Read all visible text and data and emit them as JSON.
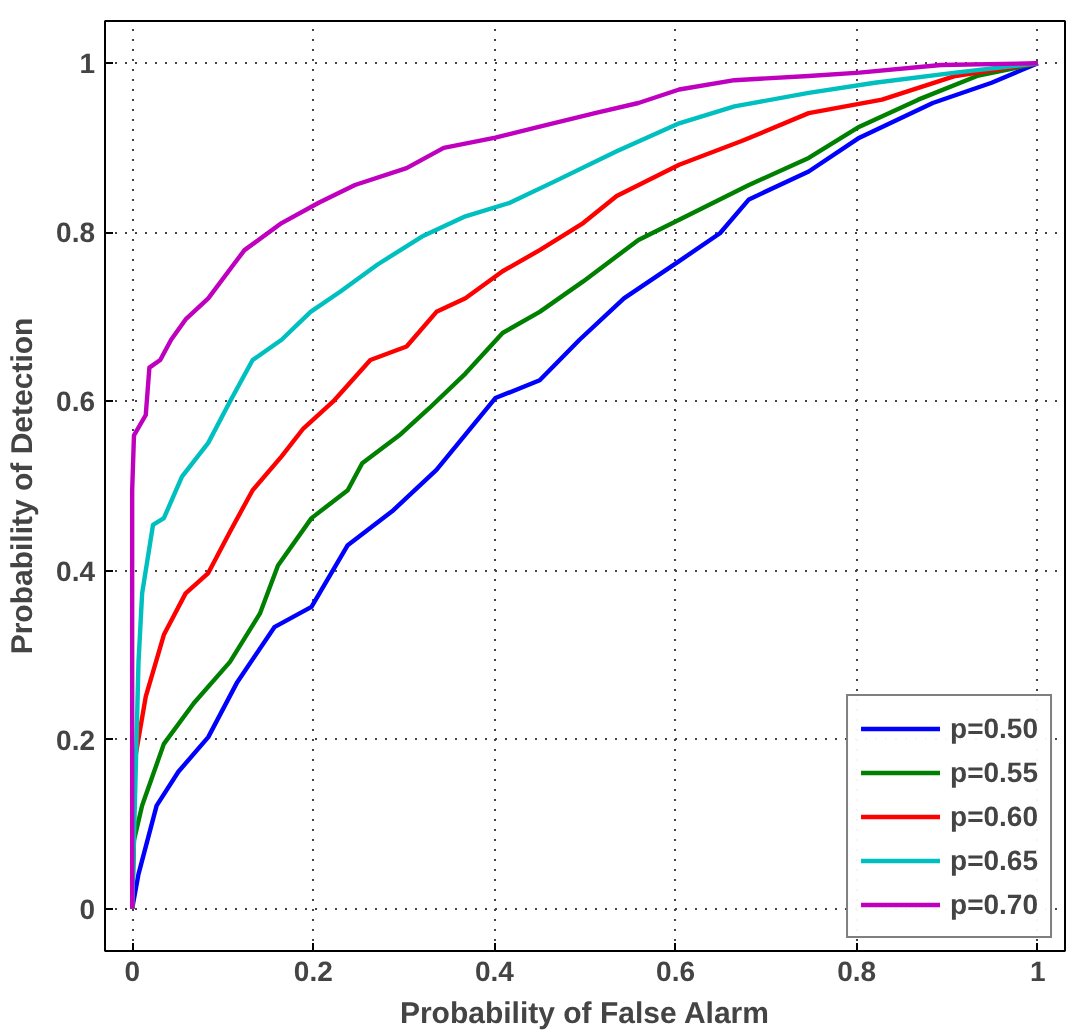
{
  "chart_data": {
    "type": "line",
    "xlabel": "Probability of False Alarm",
    "ylabel": "Probability of Detection",
    "xlim": [
      -0.03,
      1.03
    ],
    "ylim": [
      -0.05,
      1.05
    ],
    "xticks": [
      0,
      0.2,
      0.4,
      0.6,
      0.8,
      1
    ],
    "yticks": [
      0,
      0.2,
      0.4,
      0.6,
      0.8,
      1
    ],
    "grid": true,
    "legend": "bottom right",
    "line_style": "solid",
    "marker": "none",
    "series": [
      {
        "name": "p=0.50",
        "color": "#0000ff",
        "x": [
          0,
          0.007,
          0.027,
          0.051,
          0.084,
          0.116,
          0.157,
          0.198,
          0.238,
          0.287,
          0.336,
          0.401,
          0.45,
          0.494,
          0.543,
          0.604,
          0.649,
          0.681,
          0.747,
          0.803,
          0.884,
          0.949,
          1
        ],
        "values": [
          0,
          0.041,
          0.122,
          0.162,
          0.203,
          0.268,
          0.333,
          0.357,
          0.43,
          0.47,
          0.519,
          0.604,
          0.625,
          0.673,
          0.722,
          0.766,
          0.799,
          0.839,
          0.872,
          0.912,
          0.953,
          0.977,
          1
        ]
      },
      {
        "name": "p=0.55",
        "color": "#008000",
        "x": [
          0,
          0.002,
          0.011,
          0.035,
          0.068,
          0.108,
          0.141,
          0.161,
          0.198,
          0.238,
          0.254,
          0.295,
          0.328,
          0.368,
          0.409,
          0.45,
          0.498,
          0.559,
          0.604,
          0.681,
          0.747,
          0.803,
          0.868,
          0.933,
          1
        ],
        "values": [
          0,
          0.081,
          0.122,
          0.195,
          0.243,
          0.292,
          0.349,
          0.406,
          0.462,
          0.495,
          0.527,
          0.56,
          0.592,
          0.633,
          0.681,
          0.706,
          0.742,
          0.791,
          0.815,
          0.856,
          0.888,
          0.925,
          0.957,
          0.985,
          1
        ]
      },
      {
        "name": "p=0.60",
        "color": "#ff0000",
        "x": [
          0,
          0.002,
          0.015,
          0.035,
          0.059,
          0.084,
          0.108,
          0.133,
          0.165,
          0.189,
          0.222,
          0.263,
          0.303,
          0.336,
          0.368,
          0.409,
          0.45,
          0.498,
          0.535,
          0.604,
          0.673,
          0.747,
          0.828,
          0.909,
          1
        ],
        "values": [
          0,
          0.17,
          0.251,
          0.324,
          0.373,
          0.397,
          0.446,
          0.495,
          0.535,
          0.568,
          0.6,
          0.649,
          0.665,
          0.706,
          0.722,
          0.754,
          0.779,
          0.811,
          0.843,
          0.88,
          0.908,
          0.941,
          0.957,
          0.985,
          1
        ]
      },
      {
        "name": "p=0.65",
        "color": "#00bfbf",
        "x": [
          0,
          0.007,
          0.011,
          0.023,
          0.035,
          0.055,
          0.084,
          0.108,
          0.133,
          0.165,
          0.197,
          0.23,
          0.271,
          0.32,
          0.368,
          0.417,
          0.466,
          0.535,
          0.604,
          0.665,
          0.747,
          0.82,
          0.909,
          1
        ],
        "values": [
          0,
          0.292,
          0.373,
          0.454,
          0.462,
          0.511,
          0.551,
          0.6,
          0.649,
          0.673,
          0.706,
          0.73,
          0.762,
          0.795,
          0.819,
          0.835,
          0.86,
          0.896,
          0.929,
          0.949,
          0.965,
          0.977,
          0.989,
          1
        ]
      },
      {
        "name": "p=0.70",
        "color": "#bf00bf",
        "x": [
          0,
          0,
          0.002,
          0.015,
          0.019,
          0.031,
          0.043,
          0.059,
          0.084,
          0.112,
          0.124,
          0.165,
          0.206,
          0.246,
          0.303,
          0.344,
          0.401,
          0.45,
          0.511,
          0.559,
          0.604,
          0.665,
          0.747,
          0.803,
          0.893,
          1
        ],
        "values": [
          0,
          0.495,
          0.56,
          0.584,
          0.64,
          0.649,
          0.673,
          0.697,
          0.722,
          0.762,
          0.779,
          0.811,
          0.835,
          0.856,
          0.876,
          0.9,
          0.912,
          0.925,
          0.941,
          0.953,
          0.969,
          0.98,
          0.985,
          0.989,
          0.998,
          1
        ]
      }
    ]
  }
}
